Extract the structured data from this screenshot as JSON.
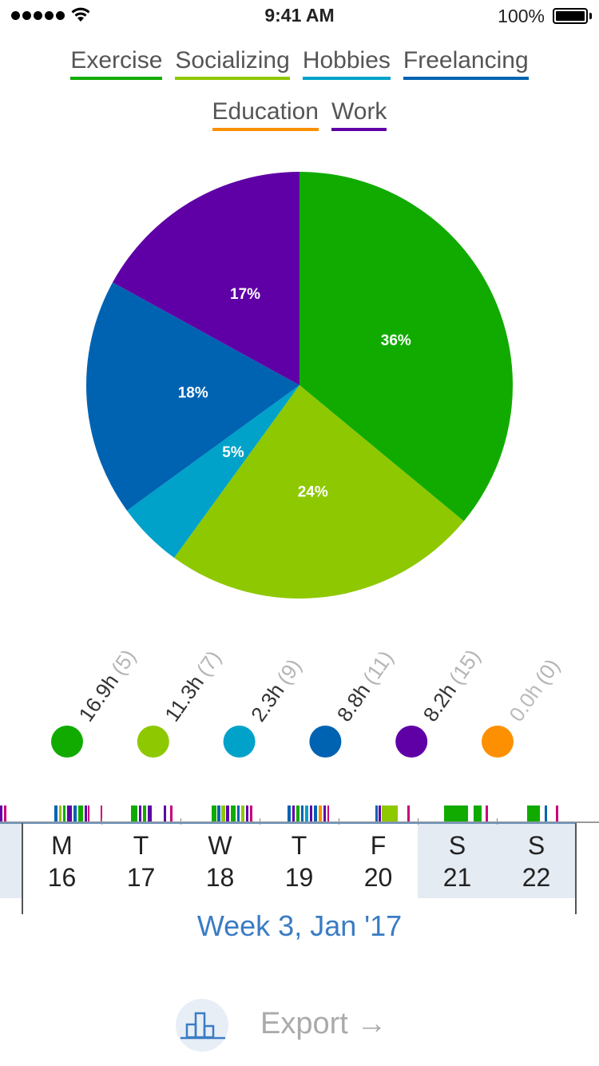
{
  "status_bar": {
    "time": "9:41 AM",
    "battery": "100%"
  },
  "chart_data": {
    "type": "pie",
    "categories": [
      "Exercise",
      "Socializing",
      "Hobbies",
      "Freelancing",
      "Education",
      "Work"
    ],
    "colors": [
      "#11ab00",
      "#8ec800",
      "#00a2ca",
      "#0063b2",
      "#fc9000",
      "#5f00a6"
    ],
    "slices": [
      {
        "name": "Exercise",
        "percent": 36,
        "label": "36%",
        "color": "#11ab00"
      },
      {
        "name": "Socializing",
        "percent": 24,
        "label": "24%",
        "color": "#8ec800"
      },
      {
        "name": "Hobbies",
        "percent": 5,
        "label": "5%",
        "color": "#00a2ca"
      },
      {
        "name": "Freelancing",
        "percent": 18,
        "label": "18%",
        "color": "#0063b2"
      },
      {
        "name": "Work",
        "percent": 17,
        "label": "17%",
        "color": "#5f00a6"
      }
    ],
    "totals": [
      {
        "name": "Exercise",
        "hours": 16.9,
        "hours_label": "16.9h",
        "count_label": "(5)",
        "color": "#11ab00"
      },
      {
        "name": "Socializing",
        "hours": 11.3,
        "hours_label": "11.3h",
        "count_label": "(7)",
        "color": "#8ec800"
      },
      {
        "name": "Hobbies",
        "hours": 2.3,
        "hours_label": "2.3h",
        "count_label": "(9)",
        "color": "#00a2ca"
      },
      {
        "name": "Freelancing",
        "hours": 8.8,
        "hours_label": "8.8h",
        "count_label": "(11)",
        "color": "#0063b2"
      },
      {
        "name": "Work",
        "hours": 8.2,
        "hours_label": "8.2h",
        "count_label": "(15)",
        "color": "#5f00a6"
      },
      {
        "name": "Education",
        "hours": 0.0,
        "hours_label": "0.0h",
        "count_label": "(0)",
        "color": "#fc9000"
      }
    ]
  },
  "legend": [
    {
      "label": "Exercise",
      "color": "#11ab00"
    },
    {
      "label": "Socializing",
      "color": "#8ec800"
    },
    {
      "label": "Hobbies",
      "color": "#00a2ca"
    },
    {
      "label": "Freelancing",
      "color": "#0063b2"
    },
    {
      "label": "Education",
      "color": "#fc9000"
    },
    {
      "label": "Work",
      "color": "#5f00a6"
    }
  ],
  "timeline": {
    "days": [
      {
        "letter": "M",
        "date": "16",
        "weekend": false
      },
      {
        "letter": "T",
        "date": "17",
        "weekend": false
      },
      {
        "letter": "W",
        "date": "18",
        "weekend": false
      },
      {
        "letter": "T",
        "date": "19",
        "weekend": false
      },
      {
        "letter": "F",
        "date": "20",
        "weekend": false
      },
      {
        "letter": "S",
        "date": "21",
        "weekend": true
      },
      {
        "letter": "S",
        "date": "22",
        "weekend": true
      }
    ],
    "week_label": "Week 3, Jan '17"
  },
  "footer": {
    "export_label": "Export →",
    "stats_icon": "bar-chart-icon"
  }
}
